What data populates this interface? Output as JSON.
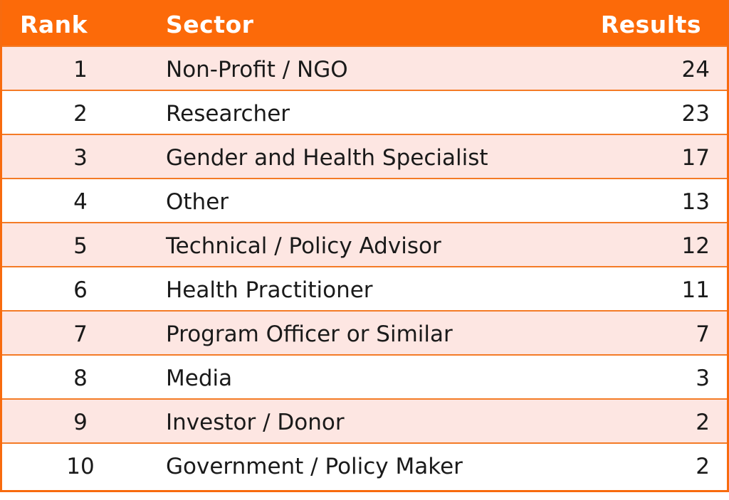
{
  "table": {
    "headers": {
      "rank": "Rank",
      "sector": "Sector",
      "results": "Results"
    },
    "rows": [
      {
        "rank": "1",
        "sector": "Non-Profit / NGO",
        "results": "24"
      },
      {
        "rank": "2",
        "sector": "Researcher",
        "results": "23"
      },
      {
        "rank": "3",
        "sector": "Gender and Health Specialist",
        "results": "17"
      },
      {
        "rank": "4",
        "sector": "Other",
        "results": "13"
      },
      {
        "rank": "5",
        "sector": "Technical / Policy Advisor",
        "results": "12"
      },
      {
        "rank": "6",
        "sector": "Health Practitioner",
        "results": "11"
      },
      {
        "rank": "7",
        "sector": "Program Officer or Similar",
        "results": "7"
      },
      {
        "rank": "8",
        "sector": "Media",
        "results": "3"
      },
      {
        "rank": "9",
        "sector": "Investor / Donor",
        "results": "2"
      },
      {
        "rank": "10",
        "sector": "Government / Policy Maker",
        "results": "2"
      }
    ]
  },
  "colors": {
    "header_bg": "#fc6a09",
    "border": "#f47b26",
    "odd_row_bg": "#fde6e2",
    "even_row_bg": "#ffffff"
  },
  "chart_data": {
    "type": "table",
    "columns": [
      "Rank",
      "Sector",
      "Results"
    ],
    "rows": [
      [
        1,
        "Non-Profit / NGO",
        24
      ],
      [
        2,
        "Researcher",
        23
      ],
      [
        3,
        "Gender and Health Specialist",
        17
      ],
      [
        4,
        "Other",
        13
      ],
      [
        5,
        "Technical / Policy Advisor",
        12
      ],
      [
        6,
        "Health Practitioner",
        11
      ],
      [
        7,
        "Program Officer or Similar",
        7
      ],
      [
        8,
        "Media",
        3
      ],
      [
        9,
        "Investor / Donor",
        2
      ],
      [
        10,
        "Government / Policy Maker",
        2
      ]
    ]
  }
}
